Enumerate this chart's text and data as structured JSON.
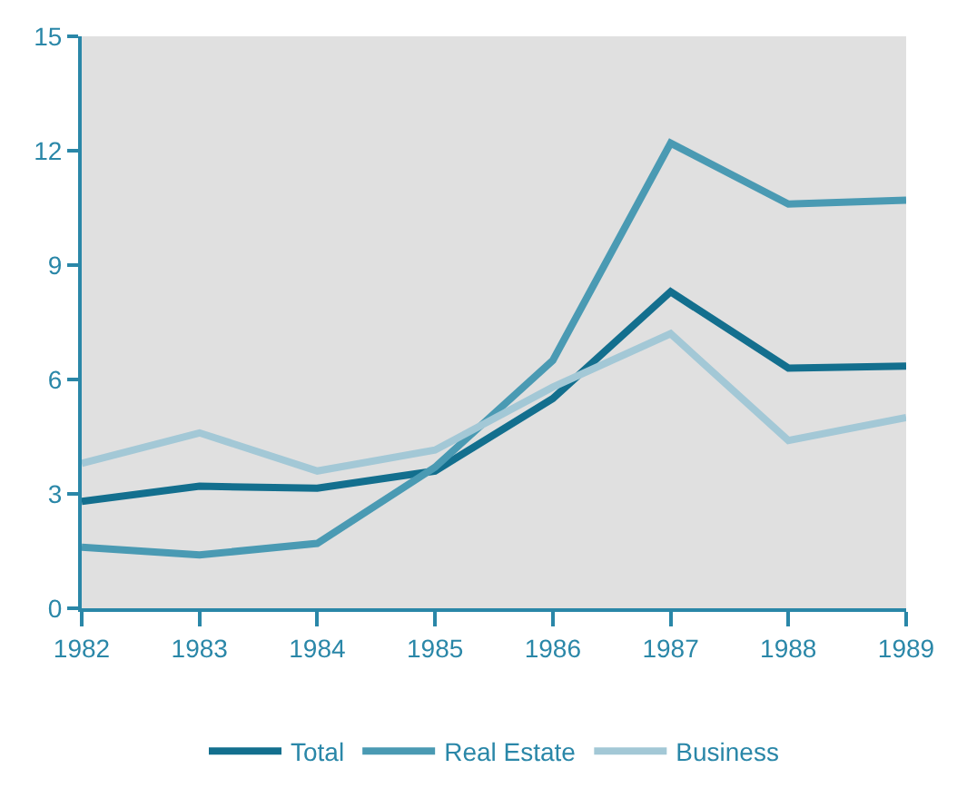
{
  "chart_data": {
    "type": "line",
    "x": [
      1982,
      1983,
      1984,
      1985,
      1986,
      1987,
      1988,
      1989
    ],
    "series": [
      {
        "name": "Total",
        "color": "#136f8e",
        "values": [
          2.8,
          3.2,
          3.15,
          3.6,
          5.5,
          8.3,
          6.3,
          6.35
        ]
      },
      {
        "name": "Real Estate",
        "color": "#4a9ab3",
        "values": [
          1.6,
          1.4,
          1.7,
          3.7,
          6.5,
          12.2,
          10.6,
          10.7
        ]
      },
      {
        "name": "Business",
        "color": "#a3c8d6",
        "values": [
          3.8,
          4.6,
          3.6,
          4.15,
          5.8,
          7.2,
          4.4,
          5.0
        ]
      }
    ],
    "xlim": [
      1982,
      1989
    ],
    "xticks": [
      1982,
      1983,
      1984,
      1985,
      1986,
      1987,
      1988,
      1989
    ],
    "ylim": [
      0,
      15
    ],
    "yticks": [
      0,
      3,
      6,
      9,
      12,
      15
    ],
    "grid": false,
    "legend": "bottom",
    "marker": "none",
    "line_style": "solid"
  }
}
